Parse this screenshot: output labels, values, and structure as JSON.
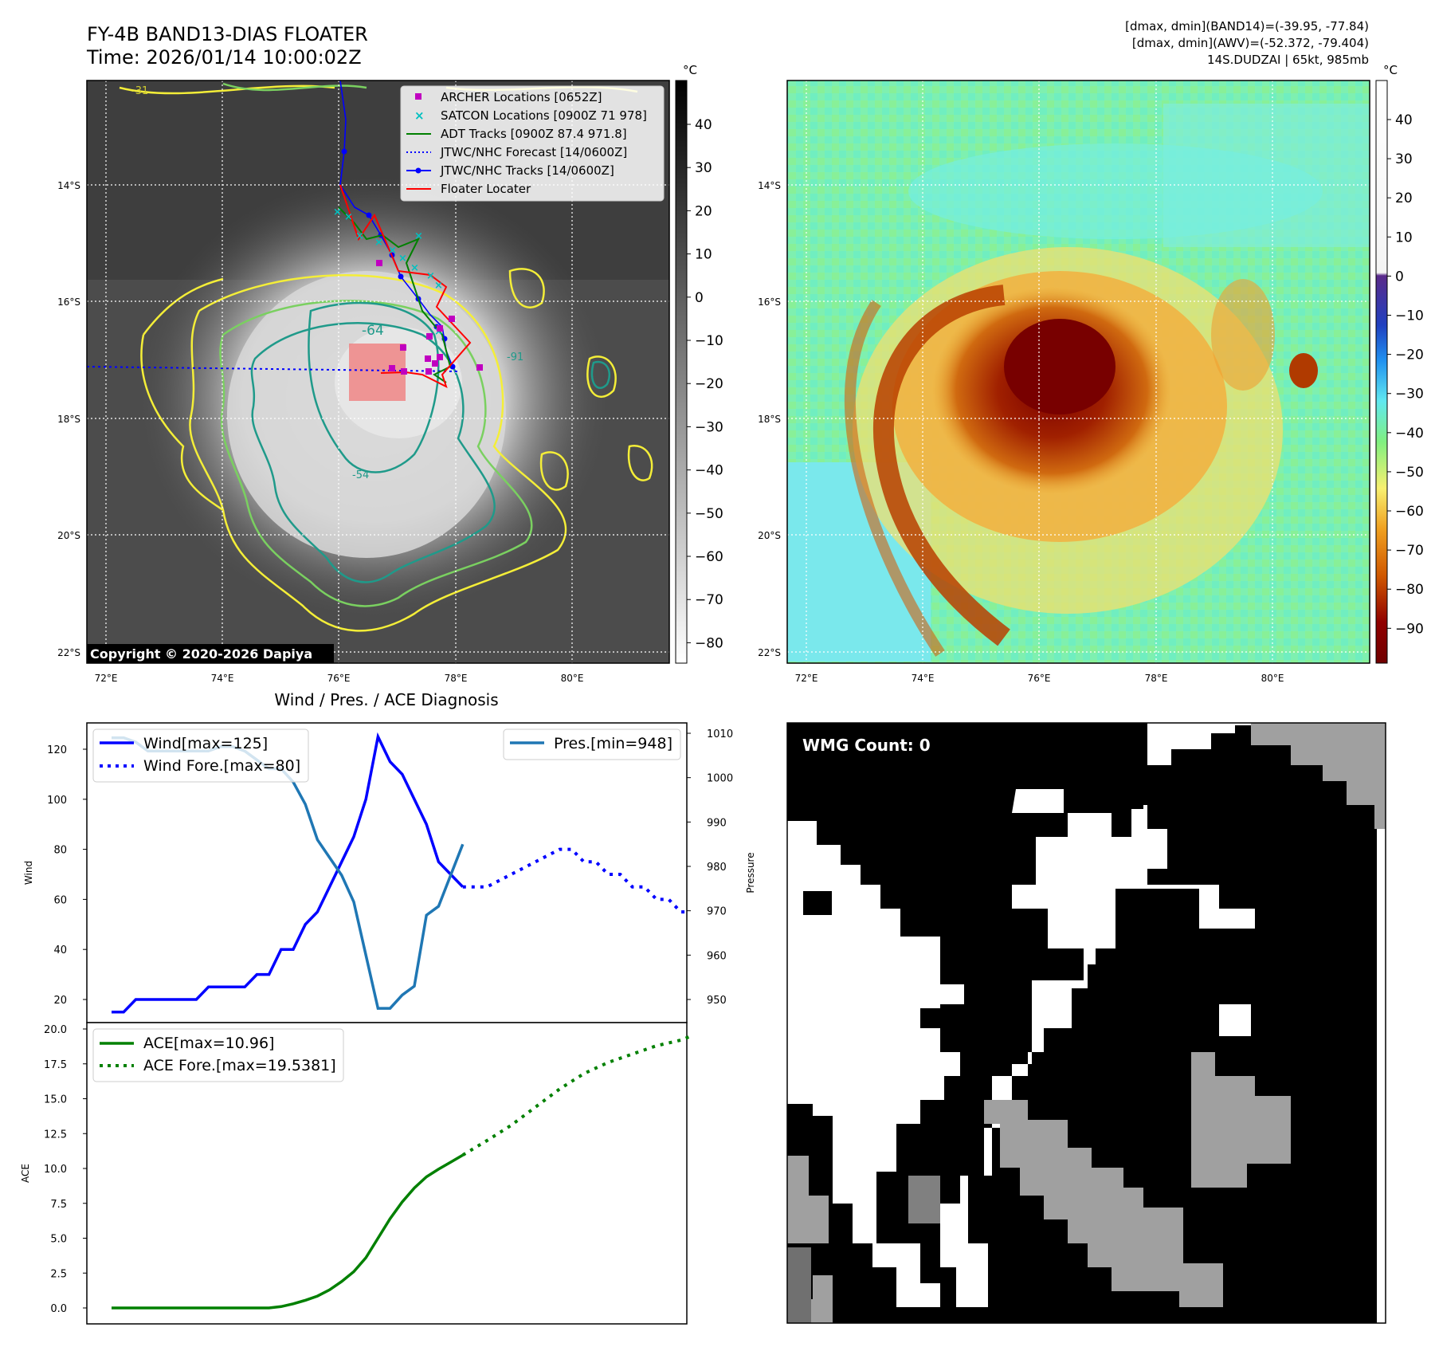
{
  "header": {
    "title_line1": "FY-4B BAND13-DIAS FLOATER",
    "title_line2": "Time: 2026/01/14 10:00:02Z",
    "info_line1": "[dmax, dmin](BAND14)=(-39.95, -77.84)",
    "info_line2": "[dmax, dmin](AWV)=(-52.372, -79.404)",
    "info_line3": "14S.DUDZAI | 65kt, 985mb"
  },
  "map_axes": {
    "lon_labels": [
      "72°E",
      "74°E",
      "76°E",
      "78°E",
      "80°E"
    ],
    "lat_labels": [
      "14°S",
      "16°S",
      "18°S",
      "20°S",
      "22°S"
    ]
  },
  "ir_panel": {
    "colorbar_unit": "°C",
    "colorbar_ticks": [
      "40",
      "30",
      "20",
      "10",
      "0",
      "−10",
      "−20",
      "−30",
      "−40",
      "−50",
      "−60",
      "−70",
      "−80"
    ],
    "copyright": "Copyright © 2020-2026 Dapiya",
    "contour_labels": [
      "-64",
      "-54",
      "-31",
      "-91"
    ],
    "legend": [
      {
        "label": "ARCHER Locations [0652Z]",
        "color": "#c000c0"
      },
      {
        "label": "SATCON Locations [0900Z 71 978]",
        "color": "#00c0c0"
      },
      {
        "label": "ADT Tracks [0900Z 87.4 971.8]",
        "color": "#008000"
      },
      {
        "label": "JTWC/NHC Forecast [14/0600Z]",
        "color": "#0000ff"
      },
      {
        "label": "JTWC/NHC Tracks [14/0600Z]",
        "color": "#0000ff"
      },
      {
        "label": "Floater Locater",
        "color": "#ff0000"
      }
    ]
  },
  "wv_panel": {
    "colorbar_unit": "°C",
    "colorbar_ticks": [
      "40",
      "30",
      "20",
      "10",
      "0",
      "−10",
      "−20",
      "−30",
      "−40",
      "−50",
      "−60",
      "−70",
      "−80",
      "−90"
    ]
  },
  "wmg_panel": {
    "label": "WMG Count: 0"
  },
  "chart_data": [
    {
      "type": "line",
      "title": "Wind / Pres. / ACE Diagnosis",
      "xlabel": "",
      "ylabel": "Wind",
      "ylabel_right": "Pressure",
      "ylim": [
        13,
        130
      ],
      "ylim_right": [
        946,
        1010
      ],
      "yticks": [
        20,
        40,
        60,
        80,
        100,
        120
      ],
      "yticks_right": [
        950,
        960,
        970,
        980,
        990,
        1000,
        1010
      ],
      "x": [
        0,
        1,
        2,
        3,
        4,
        5,
        6,
        7,
        8,
        9,
        10,
        11,
        12,
        13,
        14,
        15,
        16,
        17,
        18,
        19,
        20,
        21,
        22,
        23,
        24,
        25,
        26,
        27,
        28,
        29,
        30,
        31,
        32,
        33,
        34,
        35,
        36,
        37,
        38,
        39,
        40,
        41,
        42,
        43,
        44,
        45,
        46,
        47,
        48
      ],
      "series": [
        {
          "name": "Wind[max=125]",
          "axis": "left",
          "style": "solid",
          "color": "#0000ff",
          "x": [
            0,
            1,
            2,
            3,
            4,
            5,
            6,
            7,
            8,
            9,
            10,
            11,
            12,
            13,
            14,
            15,
            16,
            17,
            18,
            19,
            20,
            21,
            22,
            23,
            24,
            25,
            26,
            27,
            28,
            29
          ],
          "values": [
            15,
            15,
            20,
            20,
            20,
            20,
            20,
            20,
            25,
            25,
            25,
            25,
            30,
            30,
            40,
            40,
            50,
            55,
            65,
            75,
            85,
            100,
            125,
            115,
            110,
            100,
            90,
            75,
            70,
            65
          ]
        },
        {
          "name": "Wind Fore.[max=80]",
          "axis": "left",
          "style": "dotted",
          "color": "#0000ff",
          "x": [
            29,
            31,
            33,
            35,
            37,
            38,
            39,
            40,
            41,
            42,
            43,
            44,
            45,
            46,
            47,
            48
          ],
          "values": [
            65,
            65,
            70,
            75,
            80,
            80,
            75,
            75,
            70,
            70,
            65,
            65,
            60,
            60,
            55,
            55
          ]
        },
        {
          "name": "Pres.[min=948]",
          "axis": "right",
          "style": "solid",
          "color": "#1f77b4",
          "x": [
            0,
            1,
            2,
            3,
            4,
            5,
            6,
            7,
            8,
            9,
            10,
            11,
            12,
            13,
            14,
            15,
            16,
            17,
            18,
            19,
            20,
            21,
            22,
            23,
            24,
            25,
            26,
            27,
            28,
            29
          ],
          "values": [
            1009,
            1009,
            1008,
            1006,
            1006,
            1006,
            1006,
            1006,
            1006,
            1007,
            1007,
            1006,
            1004,
            1002,
            1002,
            999,
            994,
            986,
            982,
            978,
            972,
            960,
            948,
            948,
            951,
            953,
            969,
            971,
            978,
            985
          ]
        }
      ]
    },
    {
      "type": "line",
      "ylabel": "ACE",
      "ylim": [
        -0.6,
        20.0
      ],
      "yticks": [
        "0.0",
        "2.5",
        "5.0",
        "7.5",
        "10.0",
        "12.5",
        "15.0",
        "17.5",
        "20.0"
      ],
      "series": [
        {
          "name": "ACE[max=10.96]",
          "style": "solid",
          "color": "#008000",
          "x": [
            0,
            1,
            2,
            3,
            4,
            5,
            6,
            7,
            8,
            9,
            10,
            11,
            12,
            13,
            14,
            15,
            16,
            17,
            18,
            19,
            20,
            21,
            22,
            23,
            24,
            25,
            26,
            27,
            28,
            29
          ],
          "values": [
            0,
            0,
            0,
            0,
            0,
            0,
            0,
            0,
            0,
            0,
            0,
            0,
            0,
            0,
            0.1,
            0.3,
            0.55,
            0.85,
            1.3,
            1.9,
            2.6,
            3.6,
            5.0,
            6.4,
            7.6,
            8.6,
            9.4,
            9.95,
            10.45,
            10.96
          ]
        },
        {
          "name": "ACE Fore.[max=19.5381]",
          "style": "dotted",
          "color": "#008000",
          "x": [
            29,
            31,
            33,
            35,
            37,
            39,
            41,
            43,
            45,
            47,
            48
          ],
          "values": [
            10.96,
            12.0,
            13.1,
            14.4,
            15.7,
            16.8,
            17.6,
            18.2,
            18.8,
            19.2,
            19.54
          ]
        }
      ]
    }
  ]
}
